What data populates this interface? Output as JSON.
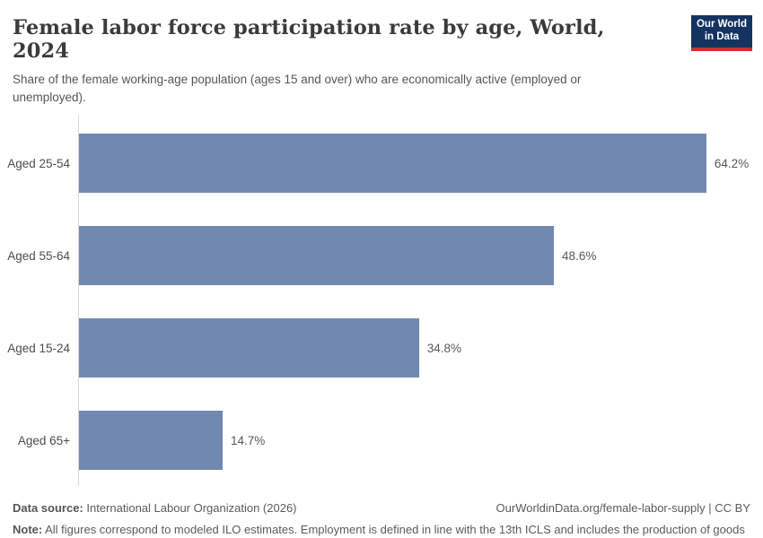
{
  "header": {
    "title": "Female labor force participation rate by age, World, 2024",
    "subtitle": "Share of the female working-age population (ages 15 and over) who are economically active (employed or unemployed).",
    "logo_line1": "Our World",
    "logo_line2": "in Data"
  },
  "chart_data": {
    "type": "bar",
    "orientation": "horizontal",
    "title": "Female labor force participation rate by age, World, 2024",
    "categories": [
      "Aged 25-54",
      "Aged 55-64",
      "Aged 15-24",
      "Aged 65+"
    ],
    "values": [
      64.2,
      48.6,
      34.8,
      14.7
    ],
    "value_labels": [
      "64.2%",
      "48.6%",
      "34.8%",
      "14.7%"
    ],
    "unit": "%",
    "xlim": [
      0,
      70
    ],
    "grid": false,
    "legend": false,
    "bar_color": "#7189b0",
    "axis_color": "#d9d9d9"
  },
  "footer": {
    "source_label": "Data source:",
    "source_text": " International Labour Organization (2026)",
    "url_text": "OurWorldinData.org/female-labor-supply | CC BY",
    "note_label": "Note:",
    "note_text": " All figures correspond to modeled ILO estimates. Employment is defined in line with the 13th ICLS and includes the production of goods for own use, such as subsistence farming."
  },
  "colors": {
    "logo_bg": "#153360",
    "logo_stripe": "#c7352c",
    "bar": "#7189b0"
  }
}
